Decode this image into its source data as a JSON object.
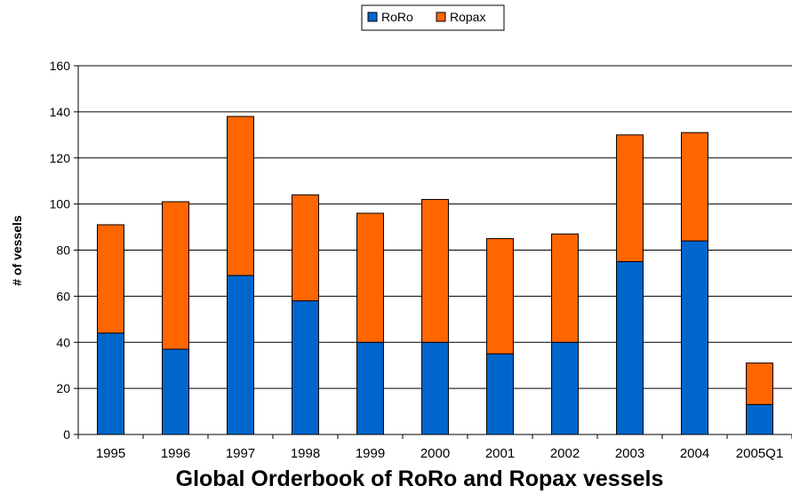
{
  "chart_data": {
    "type": "bar",
    "stacked": true,
    "title": "Global Orderbook of RoRo and Ropax vessels",
    "xlabel": "",
    "ylabel": "# of vessels",
    "ylim": [
      0,
      160
    ],
    "yticks": [
      0,
      20,
      40,
      60,
      80,
      100,
      120,
      140,
      160
    ],
    "grid": true,
    "legend_position": "top-center",
    "categories": [
      "1995",
      "1996",
      "1997",
      "1998",
      "1999",
      "2000",
      "2001",
      "2002",
      "2003",
      "2004",
      "2005Q1"
    ],
    "series": [
      {
        "name": "RoRo",
        "color": "#0066cc",
        "values": [
          44,
          37,
          69,
          58,
          40,
          40,
          35,
          40,
          75,
          84,
          13
        ]
      },
      {
        "name": "Ropax",
        "color": "#ff6600",
        "values": [
          47,
          64,
          69,
          46,
          56,
          62,
          50,
          47,
          55,
          47,
          18
        ]
      }
    ]
  }
}
